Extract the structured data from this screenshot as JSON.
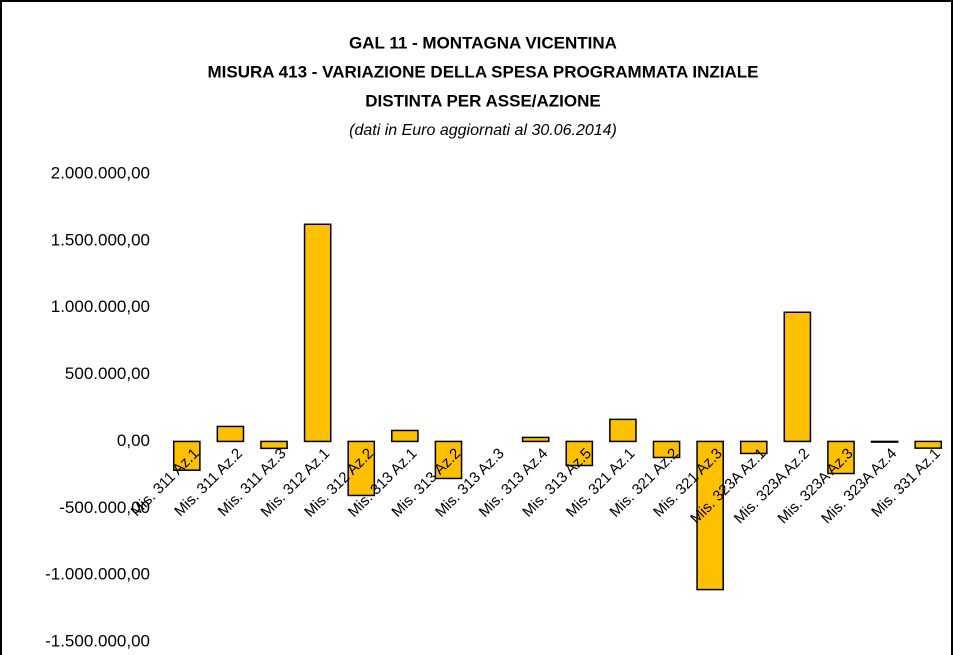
{
  "chart_data": {
    "type": "bar",
    "title": [
      "GAL 11 - MONTAGNA VICENTINA",
      "MISURA 413 - VARIAZIONE DELLA SPESA PROGRAMMATA INZIALE",
      "DISTINTA PER ASSE/AZIONE"
    ],
    "subtitle": "(dati in Euro aggiornati al 30.06.2014)",
    "categories": [
      "Mis. 311 Az.1",
      "Mis. 311 Az.2",
      "Mis. 311 Az.3",
      "Mis. 312 Az.1",
      "Mis. 312 Az.2",
      "Mis. 313 Az.1",
      "Mis. 313 Az.2",
      "Mis. 313 Az.3",
      "Mis. 313 Az.4",
      "Mis. 313 Az.5",
      "Mis. 321 Az.1",
      "Mis. 321 Az.2",
      "Mis. 321 Az.3",
      "Mis. 323A Az.1",
      "Mis. 323A Az.2",
      "Mis. 323A Az.3",
      "Mis. 323A Az.4",
      "Mis. 331 Az.1"
    ],
    "values": [
      -215000,
      112000,
      -52000,
      1624000,
      -404000,
      82000,
      -277000,
      0,
      30000,
      -180000,
      165000,
      -120000,
      -1108000,
      -90000,
      966000,
      -240000,
      -5000,
      -50000
    ],
    "color": "#ffc000",
    "ylim": [
      -1500000,
      2000000
    ],
    "yticks": [
      {
        "value": 2000000,
        "label": "2.000.000,00"
      },
      {
        "value": 1500000,
        "label": "1.500.000,00"
      },
      {
        "value": 1000000,
        "label": "1.000.000,00"
      },
      {
        "value": 500000,
        "label": "500.000,00"
      },
      {
        "value": 0,
        "label": "0,00"
      },
      {
        "value": -500000,
        "label": "-500.000,00"
      },
      {
        "value": -1000000,
        "label": "-1.000.000,00"
      },
      {
        "value": -1500000,
        "label": "-1.500.000,00"
      }
    ],
    "grid": false
  }
}
